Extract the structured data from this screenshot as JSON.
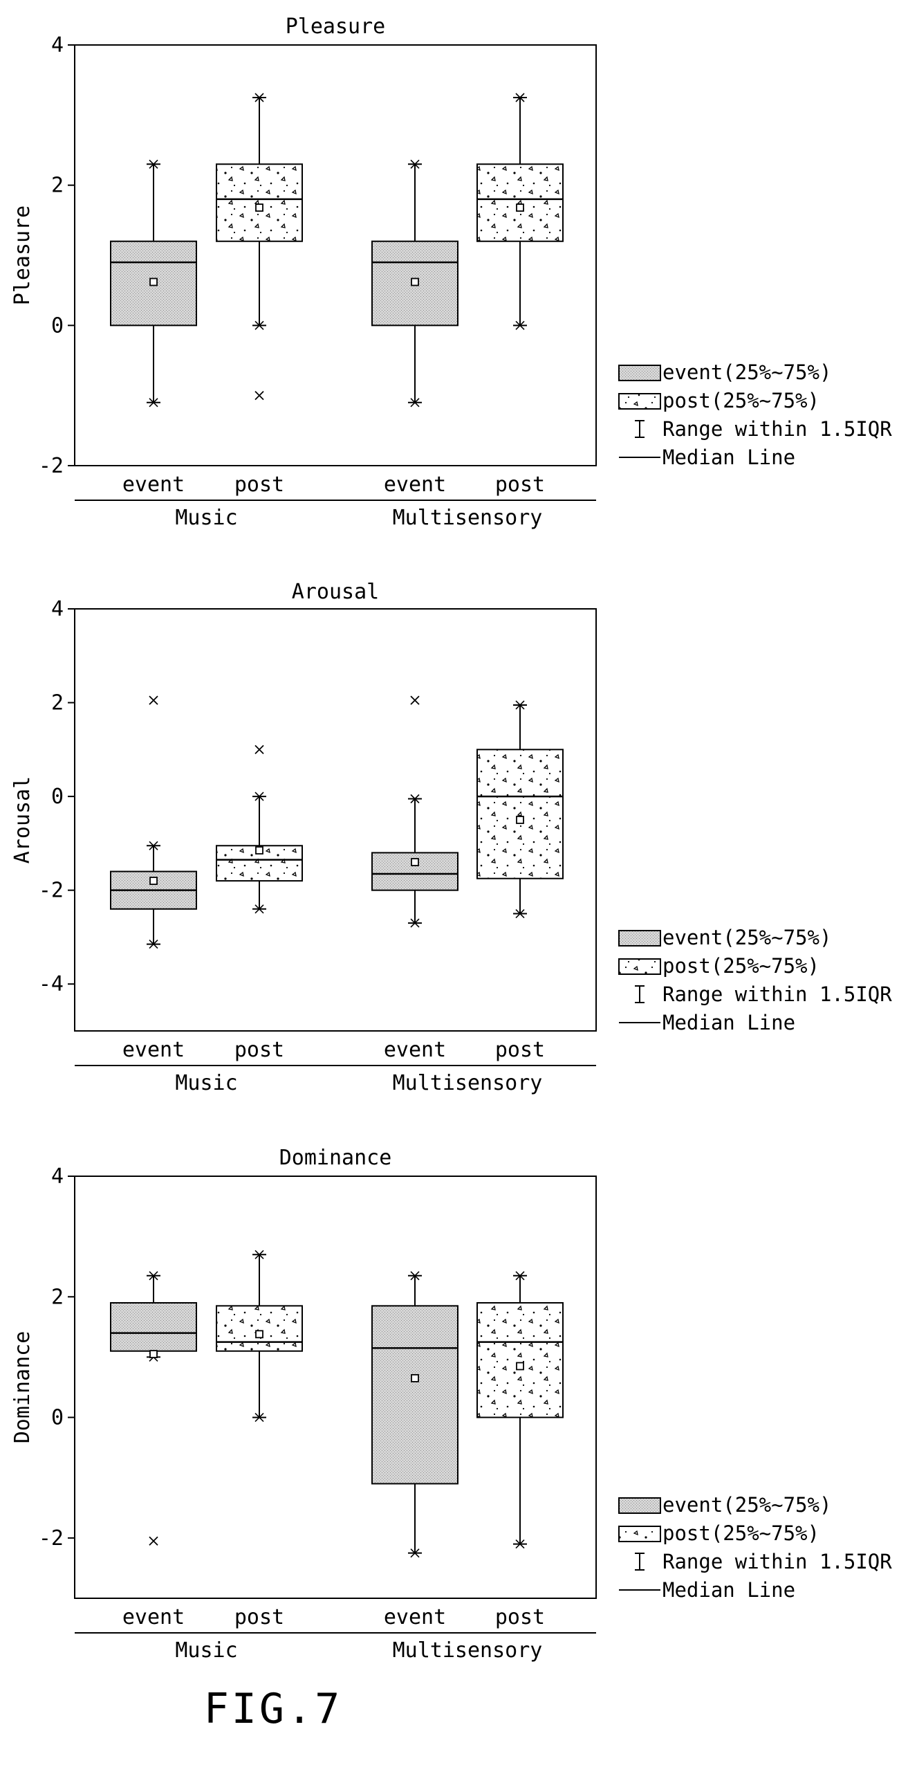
{
  "figure_label": "FIG.7",
  "legend": {
    "event": "event(25%~75%)",
    "post": "post(25%~75%)",
    "range": "Range within 1.5IQR",
    "median": "Median Line"
  },
  "colors": {
    "ink": "#000000",
    "event_fill": "#d9d9d9",
    "post_fill": "#ffffff",
    "background": "#ffffff"
  },
  "chart_data": [
    {
      "type": "box",
      "title": "Pleasure",
      "ylabel": "Pleasure",
      "xlabel": "",
      "ylim": [
        -2,
        4
      ],
      "yticks": [
        -2,
        0,
        2,
        4
      ],
      "grid": false,
      "legend_position": "right",
      "groups": [
        "Music",
        "Multisensory"
      ],
      "categories": [
        "event",
        "post",
        "event",
        "post"
      ],
      "series": [
        {
          "name": "event(25%~75%)",
          "group": "Music",
          "category": "event",
          "whisker_low": -1.1,
          "q1": 0,
          "median": 0.9,
          "mean": 0.62,
          "q3": 1.2,
          "whisker_high": 2.3,
          "outliers": []
        },
        {
          "name": "post(25%~75%)",
          "group": "Music",
          "category": "post",
          "whisker_low": 0,
          "q1": 1.2,
          "median": 1.8,
          "mean": 1.68,
          "q3": 2.3,
          "whisker_high": 3.25,
          "outliers": [
            -1.0
          ]
        },
        {
          "name": "event(25%~75%)",
          "group": "Multisensory",
          "category": "event",
          "whisker_low": -1.1,
          "q1": 0,
          "median": 0.9,
          "mean": 0.62,
          "q3": 1.2,
          "whisker_high": 2.3,
          "outliers": []
        },
        {
          "name": "post(25%~75%)",
          "group": "Multisensory",
          "category": "post",
          "whisker_low": 0,
          "q1": 1.2,
          "median": 1.8,
          "mean": 1.68,
          "q3": 2.3,
          "whisker_high": 3.25,
          "outliers": []
        }
      ]
    },
    {
      "type": "box",
      "title": "Arousal",
      "ylabel": "Arousal",
      "xlabel": "",
      "ylim": [
        -5,
        4
      ],
      "yticks": [
        -4,
        -2,
        0,
        2,
        4
      ],
      "grid": false,
      "legend_position": "right",
      "groups": [
        "Music",
        "Multisensory"
      ],
      "categories": [
        "event",
        "post",
        "event",
        "post"
      ],
      "series": [
        {
          "name": "event(25%~75%)",
          "group": "Music",
          "category": "event",
          "whisker_low": -3.15,
          "q1": -2.4,
          "median": -2.0,
          "mean": -1.8,
          "q3": -1.6,
          "whisker_high": -1.05,
          "outliers": [
            2.05
          ]
        },
        {
          "name": "post(25%~75%)",
          "group": "Music",
          "category": "post",
          "whisker_low": -2.4,
          "q1": -1.8,
          "median": -1.35,
          "mean": -1.15,
          "q3": -1.05,
          "whisker_high": 0,
          "outliers": [
            1.0
          ]
        },
        {
          "name": "event(25%~75%)",
          "group": "Multisensory",
          "category": "event",
          "whisker_low": -2.7,
          "q1": -2.0,
          "median": -1.65,
          "mean": -1.4,
          "q3": -1.2,
          "whisker_high": -0.05,
          "outliers": [
            2.05
          ]
        },
        {
          "name": "post(25%~75%)",
          "group": "Multisensory",
          "category": "post",
          "whisker_low": -2.5,
          "q1": -1.75,
          "median": 0,
          "mean": -0.5,
          "q3": 1.0,
          "whisker_high": 1.95,
          "outliers": []
        }
      ]
    },
    {
      "type": "box",
      "title": "Dominance",
      "ylabel": "Dominance",
      "xlabel": "",
      "ylim": [
        -3,
        4
      ],
      "yticks": [
        -2,
        0,
        2,
        4
      ],
      "grid": false,
      "legend_position": "right",
      "groups": [
        "Music",
        "Multisensory"
      ],
      "categories": [
        "event",
        "post",
        "event",
        "post"
      ],
      "series": [
        {
          "name": "event(25%~75%)",
          "group": "Music",
          "category": "event",
          "whisker_low": 1.0,
          "q1": 1.1,
          "median": 1.4,
          "mean": 1.05,
          "q3": 1.9,
          "whisker_high": 2.35,
          "outliers": [
            -2.05
          ]
        },
        {
          "name": "post(25%~75%)",
          "group": "Music",
          "category": "post",
          "whisker_low": 0,
          "q1": 1.1,
          "median": 1.25,
          "mean": 1.38,
          "q3": 1.85,
          "whisker_high": 2.7,
          "outliers": []
        },
        {
          "name": "event(25%~75%)",
          "group": "Multisensory",
          "category": "event",
          "whisker_low": -2.25,
          "q1": -1.1,
          "median": 1.15,
          "mean": 0.65,
          "q3": 1.85,
          "whisker_high": 2.35,
          "outliers": []
        },
        {
          "name": "post(25%~75%)",
          "group": "Multisensory",
          "category": "post",
          "whisker_low": -2.1,
          "q1": 0,
          "median": 1.25,
          "mean": 0.85,
          "q3": 1.9,
          "whisker_high": 2.35,
          "outliers": []
        }
      ]
    }
  ]
}
